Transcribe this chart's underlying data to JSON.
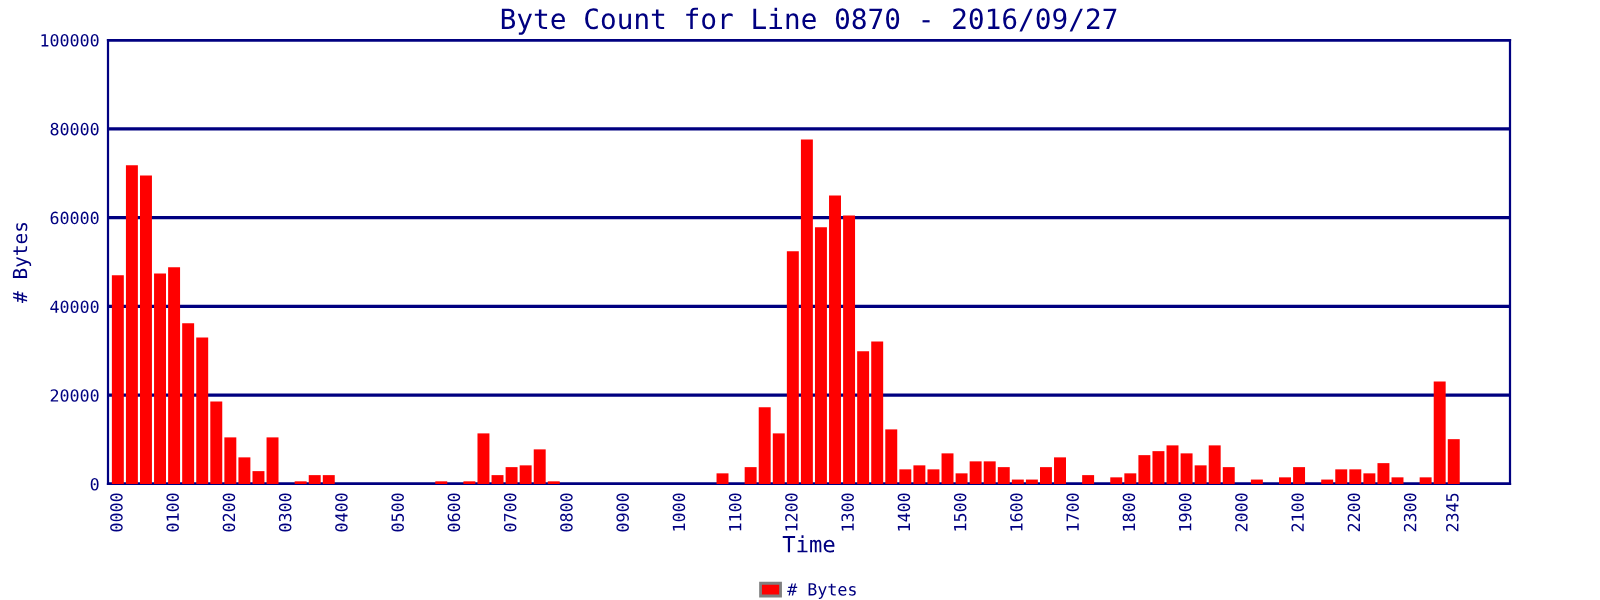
{
  "chart_data": {
    "type": "bar",
    "title": "Byte Count for Line 0870 - 2016/09/27",
    "xlabel": "Time",
    "ylabel": "# Bytes",
    "categories": [
      "0000",
      null,
      null,
      null,
      "0100",
      null,
      null,
      null,
      "0200",
      null,
      null,
      null,
      "0300",
      null,
      null,
      null,
      "0400",
      null,
      null,
      null,
      "0500",
      null,
      null,
      null,
      "0600",
      null,
      null,
      null,
      "0700",
      null,
      null,
      null,
      "0800",
      null,
      null,
      null,
      "0900",
      null,
      null,
      null,
      "1000",
      null,
      null,
      null,
      "1100",
      null,
      null,
      null,
      "1200",
      null,
      null,
      null,
      "1300",
      null,
      null,
      null,
      "1400",
      null,
      null,
      null,
      "1500",
      null,
      null,
      null,
      "1600",
      null,
      null,
      null,
      "1700",
      null,
      null,
      null,
      "1800",
      null,
      null,
      null,
      "1900",
      null,
      null,
      null,
      "2000",
      null,
      null,
      null,
      "2100",
      null,
      null,
      null,
      "2200",
      null,
      null,
      null,
      "2300",
      null,
      null,
      "2345"
    ],
    "series": [
      {
        "name": "# Bytes",
        "color": "#ff0000",
        "values": [
          47000,
          71800,
          69500,
          47400,
          48800,
          36200,
          33000,
          18600,
          10500,
          6000,
          2900,
          10500,
          0,
          600,
          2000,
          2000,
          0,
          0,
          0,
          0,
          0,
          0,
          0,
          600,
          0,
          600,
          11400,
          2000,
          3800,
          4200,
          7800,
          600,
          0,
          0,
          0,
          0,
          0,
          0,
          0,
          0,
          0,
          0,
          0,
          2400,
          0,
          3800,
          17300,
          11400,
          52400,
          77600,
          57800,
          65000,
          60500,
          29900,
          32100,
          12300,
          3300,
          4200,
          3300,
          6900,
          2400,
          5100,
          5100,
          3800,
          1000,
          1000,
          3800,
          6000,
          0,
          2000,
          0,
          1500,
          2400,
          6500,
          7400,
          8700,
          6900,
          4200,
          8700,
          3800,
          0,
          1000,
          0,
          1500,
          3800,
          0,
          1000,
          3300,
          3300,
          2400,
          4700,
          1500,
          0,
          1500,
          23100,
          10100
        ]
      }
    ],
    "ylim": [
      0,
      100000
    ],
    "yticks": [
      0,
      20000,
      40000,
      60000,
      80000,
      100000
    ],
    "grid": "y",
    "legend": "bottom"
  }
}
